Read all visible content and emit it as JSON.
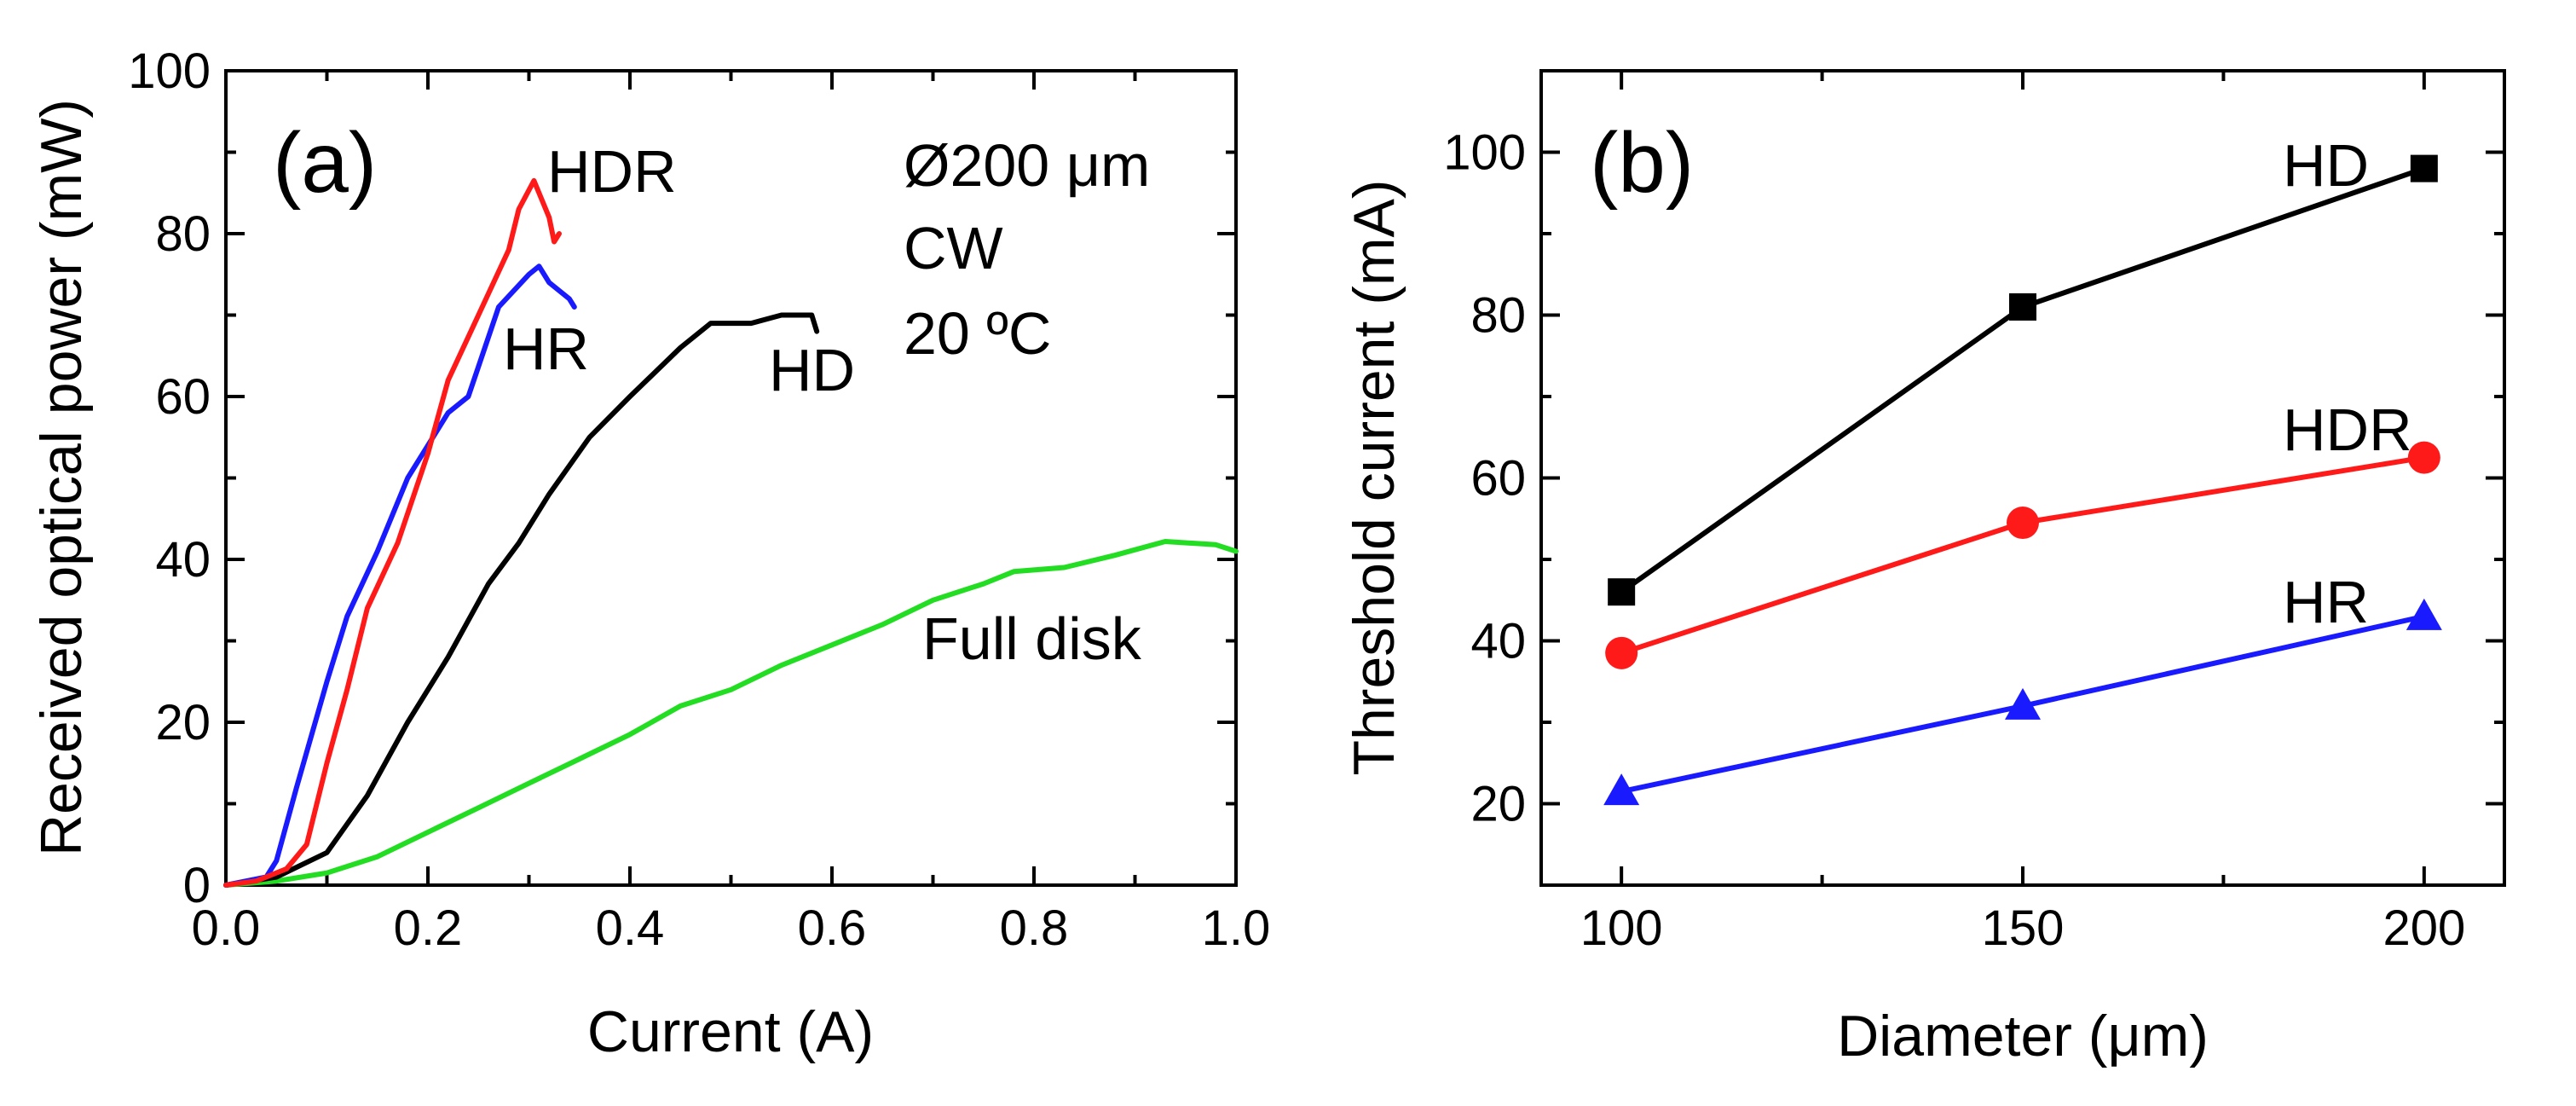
{
  "chart_data": [
    {
      "type": "line",
      "panel_label": "(a)",
      "xlabel": "Current (A)",
      "ylabel": "Received optical power (mW)",
      "xlim": [
        0,
        1.0
      ],
      "ylim": [
        0,
        100
      ],
      "xticks": [
        "0.0",
        "0.2",
        "0.4",
        "0.6",
        "0.8",
        "1.0"
      ],
      "yticks": [
        "0",
        "20",
        "40",
        "60",
        "80",
        "100"
      ],
      "annotations": [
        "Ø200 μm",
        "CW",
        "20 ºC"
      ],
      "series": [
        {
          "name": "HDR",
          "color": "#ff1a1a",
          "points": [
            [
              0.0,
              0
            ],
            [
              0.03,
              0.5
            ],
            [
              0.06,
              2
            ],
            [
              0.08,
              5
            ],
            [
              0.1,
              15
            ],
            [
              0.12,
              24
            ],
            [
              0.14,
              34
            ],
            [
              0.17,
              42
            ],
            [
              0.2,
              53
            ],
            [
              0.22,
              62
            ],
            [
              0.25,
              70
            ],
            [
              0.28,
              78
            ],
            [
              0.29,
              83
            ],
            [
              0.305,
              86.5
            ],
            [
              0.32,
              82
            ],
            [
              0.325,
              79
            ],
            [
              0.33,
              80
            ]
          ]
        },
        {
          "name": "HR",
          "color": "#1a1aff",
          "points": [
            [
              0.0,
              0
            ],
            [
              0.04,
              1
            ],
            [
              0.05,
              3
            ],
            [
              0.07,
              12
            ],
            [
              0.1,
              25
            ],
            [
              0.12,
              33
            ],
            [
              0.15,
              41
            ],
            [
              0.18,
              50
            ],
            [
              0.2,
              54
            ],
            [
              0.22,
              58
            ],
            [
              0.24,
              60
            ],
            [
              0.27,
              71
            ],
            [
              0.3,
              75
            ],
            [
              0.31,
              76
            ],
            [
              0.32,
              74
            ],
            [
              0.34,
              72
            ],
            [
              0.345,
              71
            ]
          ]
        },
        {
          "name": "HD",
          "color": "#000000",
          "points": [
            [
              0.0,
              0
            ],
            [
              0.05,
              1
            ],
            [
              0.1,
              4
            ],
            [
              0.14,
              11
            ],
            [
              0.18,
              20
            ],
            [
              0.22,
              28
            ],
            [
              0.26,
              37
            ],
            [
              0.29,
              42
            ],
            [
              0.32,
              48
            ],
            [
              0.36,
              55
            ],
            [
              0.4,
              60
            ],
            [
              0.45,
              66
            ],
            [
              0.48,
              69
            ],
            [
              0.52,
              69
            ],
            [
              0.55,
              70
            ],
            [
              0.58,
              70
            ],
            [
              0.585,
              68
            ]
          ]
        },
        {
          "name": "Full disk",
          "color": "#22dd22",
          "points": [
            [
              0.0,
              0
            ],
            [
              0.05,
              0.5
            ],
            [
              0.1,
              1.5
            ],
            [
              0.15,
              3.5
            ],
            [
              0.2,
              6.5
            ],
            [
              0.25,
              9.5
            ],
            [
              0.3,
              12.5
            ],
            [
              0.35,
              15.5
            ],
            [
              0.4,
              18.5
            ],
            [
              0.45,
              22
            ],
            [
              0.5,
              24
            ],
            [
              0.55,
              27
            ],
            [
              0.6,
              29.5
            ],
            [
              0.65,
              32
            ],
            [
              0.7,
              35
            ],
            [
              0.75,
              37
            ],
            [
              0.78,
              38.5
            ],
            [
              0.83,
              39
            ],
            [
              0.88,
              40.5
            ],
            [
              0.93,
              42.2
            ],
            [
              0.98,
              41.8
            ],
            [
              1.0,
              41
            ]
          ]
        }
      ]
    },
    {
      "type": "line",
      "panel_label": "(b)",
      "xlabel": "Diameter (μm)",
      "ylabel": "Threshold current (mA)",
      "xlim": [
        90,
        210
      ],
      "ylim": [
        10,
        110
      ],
      "xticks": [
        "100",
        "150",
        "200"
      ],
      "yticks": [
        "20",
        "40",
        "60",
        "80",
        "100"
      ],
      "categories": [
        100,
        150,
        200
      ],
      "series": [
        {
          "name": "HD",
          "marker": "square",
          "color": "#000000",
          "values": [
            46,
            81,
            98
          ]
        },
        {
          "name": "HDR",
          "marker": "circle",
          "color": "#ff1a1a",
          "values": [
            38.5,
            54.5,
            62.5
          ]
        },
        {
          "name": "HR",
          "marker": "triangle",
          "color": "#1a1aff",
          "values": [
            21.5,
            32,
            43
          ]
        }
      ]
    }
  ]
}
